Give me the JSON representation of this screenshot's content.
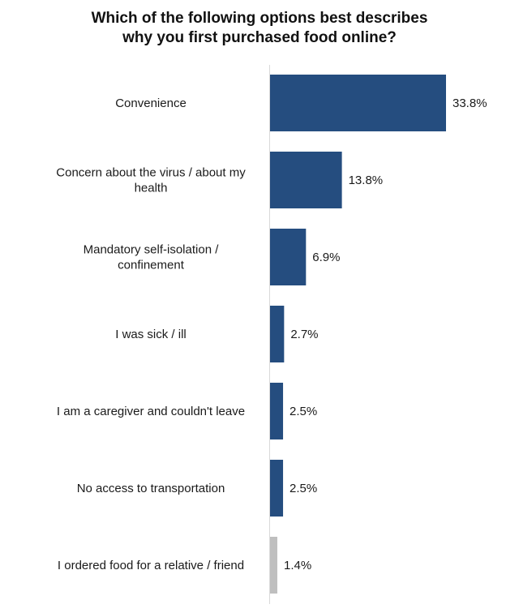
{
  "chart_data": {
    "type": "bar",
    "orientation": "horizontal",
    "title_lines": [
      "Which of the following options best describes",
      "why you first purchased food online?"
    ],
    "categories": [
      [
        "Convenience"
      ],
      [
        "Concern about the virus / about my",
        "health"
      ],
      [
        "Mandatory self-isolation /",
        "confinement"
      ],
      [
        "I was sick / ill"
      ],
      [
        "I am a caregiver and couldn't leave"
      ],
      [
        "No access to transportation"
      ],
      [
        "I ordered food for a relative / friend"
      ]
    ],
    "values": [
      33.8,
      13.8,
      6.9,
      2.7,
      2.5,
      2.5,
      1.4
    ],
    "value_labels": [
      "33.8%",
      "13.8%",
      "6.9%",
      "2.7%",
      "2.5%",
      "2.5%",
      "1.4%"
    ],
    "colors": [
      "#254d7f",
      "#254d7f",
      "#254d7f",
      "#254d7f",
      "#254d7f",
      "#254d7f",
      "#bfbfbf"
    ],
    "xlim": [
      0,
      33.8
    ],
    "grid": false,
    "legend": "none"
  }
}
